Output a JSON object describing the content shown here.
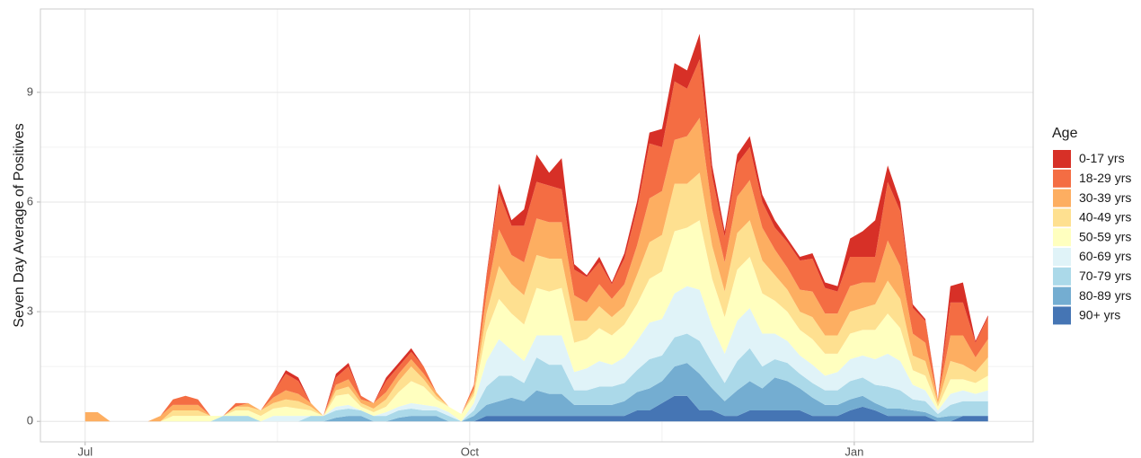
{
  "chart_data": {
    "type": "stacked_area",
    "y_label": "Seven Day Average of Positives",
    "legend_title": "Age",
    "legend": "right",
    "grid": true,
    "x": [
      0,
      3,
      6,
      9,
      12,
      15,
      18,
      21,
      24,
      27,
      30,
      33,
      36,
      39,
      42,
      45,
      48,
      51,
      54,
      57,
      60,
      63,
      66,
      69,
      72,
      75,
      78,
      81,
      84,
      87,
      90,
      93,
      96,
      99,
      102,
      105,
      108,
      111,
      114,
      117,
      120,
      123,
      126,
      129,
      132,
      135,
      138,
      141,
      144,
      147,
      150,
      153,
      156,
      159,
      162,
      165,
      168,
      171,
      174,
      177,
      180,
      183,
      186,
      189,
      192,
      195,
      198,
      201,
      204,
      207,
      210,
      213,
      216
    ],
    "xlim": [
      -10.7,
      226.8
    ],
    "xticks": [
      {
        "value": 0,
        "label": "Jul"
      },
      {
        "value": 92,
        "label": "Oct"
      },
      {
        "value": 184,
        "label": "Jan"
      }
    ],
    "ylim": [
      -0.56,
      11.28
    ],
    "yticks": [
      0,
      3,
      6,
      9
    ],
    "series": [
      {
        "name": "0-17 yrs",
        "color": "#d73027",
        "values": [
          0,
          0,
          0,
          0,
          0,
          0,
          0,
          0,
          0,
          0,
          0,
          0,
          0,
          0,
          0,
          0,
          0.1,
          0.1,
          0,
          0,
          0.1,
          0.1,
          0,
          0,
          0.1,
          0.1,
          0.1,
          0,
          0,
          0,
          0,
          0,
          0.05,
          0.25,
          0.15,
          0.45,
          0.75,
          0.35,
          0.85,
          0.15,
          0.05,
          0.15,
          0.05,
          0.15,
          0.2,
          0.3,
          0.5,
          0.5,
          0.5,
          0.7,
          0.3,
          0.15,
          0.25,
          0.3,
          0.2,
          0.2,
          0.1,
          0.1,
          0.15,
          0.15,
          0.15,
          0.5,
          0.7,
          1.0,
          0.45,
          0.25,
          0.1,
          0.05,
          0,
          0.45,
          0.55,
          0.05,
          0.05
        ]
      },
      {
        "name": "18-29 yrs",
        "color": "#f46d43",
        "values": [
          0,
          0,
          0,
          0,
          0,
          0,
          0,
          0.15,
          0.25,
          0.15,
          0,
          0,
          0.1,
          0,
          0,
          0.15,
          0.45,
          0.35,
          0,
          0,
          0.2,
          0.35,
          0.1,
          0,
          0.3,
          0.2,
          0.2,
          0.2,
          0,
          0,
          0,
          0.1,
          0.5,
          1.0,
          0.8,
          1.0,
          1.0,
          1.0,
          0.9,
          0.7,
          0.7,
          0.6,
          0.4,
          0.7,
          1.0,
          1.5,
          1.2,
          1.6,
          1.3,
          1.6,
          0.9,
          0.7,
          0.9,
          0.9,
          0.7,
          0.6,
          0.7,
          0.8,
          0.9,
          0.7,
          0.6,
          0.8,
          0.7,
          0.7,
          1.6,
          1.5,
          0.7,
          0.6,
          0,
          0.9,
          0.9,
          0.4,
          0.6
        ]
      },
      {
        "name": "30-39 yrs",
        "color": "#fdae61",
        "values": [
          0.25,
          0.25,
          0,
          0,
          0,
          0,
          0.15,
          0.15,
          0.15,
          0.15,
          0,
          0,
          0,
          0.1,
          0,
          0.15,
          0.25,
          0.2,
          0.1,
          0,
          0.15,
          0.2,
          0.1,
          0.15,
          0.2,
          0.2,
          0.2,
          0.15,
          0.1,
          0,
          0,
          0.1,
          0.5,
          1.0,
          0.8,
          0.9,
          1.0,
          1.0,
          1.0,
          0.7,
          0.5,
          0.6,
          0.5,
          0.6,
          0.8,
          1.2,
          1.2,
          1.2,
          1.3,
          1.5,
          1.0,
          0.8,
          1.0,
          1.1,
          0.9,
          0.7,
          0.6,
          0.6,
          0.7,
          0.6,
          0.6,
          0.7,
          0.7,
          0.6,
          1.1,
          0.9,
          0.6,
          0.5,
          0.1,
          0.7,
          0.8,
          0.4,
          0.5
        ]
      },
      {
        "name": "40-49 yrs",
        "color": "#fee090",
        "values": [
          0,
          0,
          0,
          0,
          0,
          0,
          0,
          0.15,
          0.15,
          0.15,
          0,
          0,
          0.1,
          0.1,
          0.15,
          0.15,
          0.2,
          0.2,
          0.1,
          0,
          0.15,
          0.2,
          0.1,
          0.1,
          0.2,
          0.3,
          0.4,
          0.2,
          0.1,
          0,
          0,
          0.1,
          0.5,
          0.9,
          0.8,
          0.8,
          0.9,
          0.9,
          0.8,
          0.6,
          0.5,
          0.6,
          0.5,
          0.5,
          0.8,
          1.0,
          1.0,
          1.3,
          1.2,
          1.3,
          0.9,
          0.7,
          1.0,
          1.0,
          0.9,
          0.7,
          0.6,
          0.5,
          0.6,
          0.5,
          0.5,
          0.6,
          0.6,
          0.7,
          0.9,
          0.8,
          0.4,
          0.4,
          0.1,
          0.5,
          0.4,
          0.3,
          0.5
        ]
      },
      {
        "name": "50-59 yrs",
        "color": "#ffffbf",
        "values": [
          0,
          0,
          0,
          0,
          0,
          0,
          0,
          0.15,
          0.15,
          0.15,
          0.15,
          0,
          0.15,
          0.15,
          0.15,
          0.2,
          0.25,
          0.2,
          0.15,
          0,
          0.3,
          0.3,
          0.1,
          0.1,
          0.15,
          0.4,
          0.6,
          0.5,
          0.2,
          0.15,
          0.2,
          0.2,
          0.8,
          1.1,
          1.0,
          1.0,
          1.3,
          1.2,
          1.3,
          0.8,
          0.8,
          0.9,
          0.8,
          0.9,
          1.0,
          1.2,
          1.3,
          1.7,
          1.6,
          1.9,
          1.3,
          1.0,
          1.4,
          1.4,
          1.1,
          0.9,
          0.8,
          0.7,
          0.7,
          0.6,
          0.5,
          0.7,
          0.7,
          0.8,
          1.1,
          0.9,
          0.4,
          0.4,
          0.1,
          0.4,
          0.3,
          0.3,
          0.4
        ]
      },
      {
        "name": "60-69 yrs",
        "color": "#e0f3f8",
        "values": [
          0,
          0,
          0,
          0,
          0,
          0,
          0,
          0,
          0,
          0,
          0,
          0,
          0,
          0,
          0,
          0.15,
          0.15,
          0.15,
          0,
          0,
          0.1,
          0.1,
          0,
          0,
          0.1,
          0.1,
          0.15,
          0.15,
          0.1,
          0.1,
          0,
          0.2,
          0.7,
          1.0,
          0.7,
          0.6,
          0.6,
          0.8,
          0.8,
          0.5,
          0.6,
          0.7,
          0.6,
          0.7,
          0.8,
          1.0,
          1.0,
          1.2,
          1.3,
          1.4,
          1.0,
          0.8,
          1.1,
          1.1,
          0.9,
          0.7,
          0.6,
          0.5,
          0.5,
          0.4,
          0.5,
          0.6,
          0.6,
          0.7,
          0.9,
          0.8,
          0.4,
          0.3,
          0.1,
          0.3,
          0.3,
          0.2,
          0.3
        ]
      },
      {
        "name": "70-79 yrs",
        "color": "#abd9e9",
        "values": [
          0,
          0,
          0,
          0,
          0,
          0,
          0,
          0,
          0,
          0,
          0,
          0.15,
          0.15,
          0.15,
          0,
          0,
          0,
          0,
          0.15,
          0.15,
          0.2,
          0.2,
          0.15,
          0.15,
          0.15,
          0.2,
          0.2,
          0.15,
          0.15,
          0.15,
          0,
          0.15,
          0.5,
          0.7,
          0.6,
          0.5,
          0.9,
          0.8,
          0.8,
          0.4,
          0.4,
          0.5,
          0.5,
          0.5,
          0.6,
          0.8,
          0.7,
          0.8,
          0.8,
          0.9,
          0.7,
          0.5,
          0.8,
          0.9,
          0.6,
          0.5,
          0.5,
          0.4,
          0.4,
          0.4,
          0.4,
          0.5,
          0.5,
          0.5,
          0.6,
          0.5,
          0.3,
          0.3,
          0.1,
          0.3,
          0.4,
          0.4,
          0.4
        ]
      },
      {
        "name": "80-89 yrs",
        "color": "#74add1",
        "values": [
          0,
          0,
          0,
          0,
          0,
          0,
          0,
          0,
          0,
          0,
          0,
          0,
          0,
          0,
          0,
          0,
          0,
          0,
          0,
          0,
          0.1,
          0.15,
          0.15,
          0,
          0,
          0.1,
          0.15,
          0.15,
          0.15,
          0,
          0,
          0.15,
          0.3,
          0.4,
          0.5,
          0.4,
          0.7,
          0.6,
          0.6,
          0.3,
          0.3,
          0.3,
          0.3,
          0.4,
          0.5,
          0.6,
          0.6,
          0.8,
          0.9,
          1.0,
          0.6,
          0.4,
          0.7,
          0.8,
          0.6,
          0.9,
          0.8,
          0.6,
          0.5,
          0.3,
          0.3,
          0.3,
          0.3,
          0.2,
          0.2,
          0.2,
          0.15,
          0.1,
          0.1,
          0.15,
          0,
          0,
          0
        ]
      },
      {
        "name": "90+ yrs",
        "color": "#4575b4",
        "values": [
          0,
          0,
          0,
          0,
          0,
          0,
          0,
          0,
          0,
          0,
          0,
          0,
          0,
          0,
          0,
          0,
          0,
          0,
          0,
          0,
          0,
          0,
          0,
          0,
          0,
          0,
          0,
          0,
          0,
          0,
          0,
          0,
          0.15,
          0.15,
          0.15,
          0.15,
          0.15,
          0.15,
          0.15,
          0.15,
          0.15,
          0.15,
          0.15,
          0.15,
          0.3,
          0.3,
          0.5,
          0.7,
          0.7,
          0.3,
          0.3,
          0.15,
          0.15,
          0.3,
          0.3,
          0.3,
          0.3,
          0.3,
          0.15,
          0.15,
          0.15,
          0.3,
          0.4,
          0.3,
          0.15,
          0.15,
          0.15,
          0.15,
          0,
          0,
          0.15,
          0.15,
          0.15
        ]
      }
    ]
  }
}
